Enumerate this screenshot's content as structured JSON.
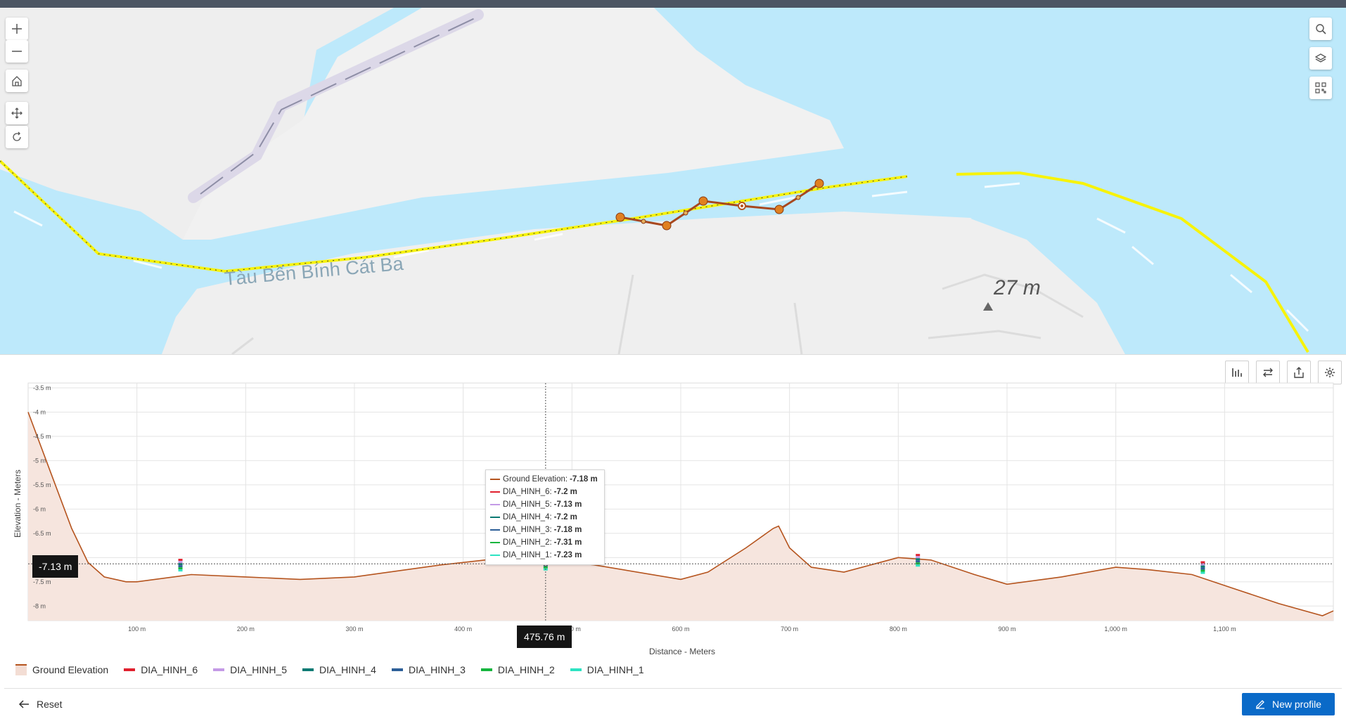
{
  "map": {
    "place_label": "Tàu Bến Bính Cát Ba",
    "elevation_label": "27 m",
    "left_tools": [
      {
        "name": "zoom-in-button",
        "icon": "plus-icon"
      },
      {
        "name": "zoom-out-button",
        "icon": "minus-icon"
      },
      {
        "name": "home-button",
        "icon": "home-icon"
      },
      {
        "name": "pan-button",
        "icon": "move-icon"
      },
      {
        "name": "rotate-button",
        "icon": "rotate-icon"
      }
    ],
    "right_tools": [
      {
        "name": "search-button",
        "icon": "search-icon"
      },
      {
        "name": "layers-button",
        "icon": "layers-icon"
      },
      {
        "name": "qr-button",
        "icon": "qr-code-icon"
      }
    ]
  },
  "chart_data": {
    "type": "line",
    "ylabel": "Elevation - Meters",
    "xlabel": "Distance - Meters",
    "ylim": [
      -8.3,
      -3.4
    ],
    "xlim": [
      0,
      1200
    ],
    "yticks": [
      -3.5,
      -4,
      -4.5,
      -5,
      -5.5,
      -6,
      -6.5,
      -7,
      -7.5,
      -8
    ],
    "ytick_labels": [
      "-3.5 m",
      "-4 m",
      "-4.5 m",
      "-5 m",
      "-5.5 m",
      "-6 m",
      "-6.5 m",
      "-7 m",
      "-7.5 m",
      "-8 m"
    ],
    "xticks": [
      100,
      200,
      300,
      400,
      500,
      600,
      700,
      800,
      900,
      1000,
      1100
    ],
    "xtick_labels": [
      "100 m",
      "200 m",
      "300 m",
      "400 m",
      "500 m",
      "600 m",
      "700 m",
      "800 m",
      "900 m",
      "1,000 m",
      "1,100 m"
    ],
    "grid": true,
    "series": [
      {
        "name": "Ground Elevation",
        "color": "#b5541e",
        "x": [
          0,
          20,
          40,
          55,
          70,
          90,
          100,
          150,
          200,
          250,
          300,
          380,
          420,
          475,
          520,
          600,
          625,
          660,
          685,
          690,
          700,
          720,
          750,
          800,
          830,
          870,
          900,
          950,
          1000,
          1030,
          1070,
          1110,
          1150,
          1190,
          1200
        ],
        "y": [
          -4.0,
          -5.2,
          -6.4,
          -7.1,
          -7.4,
          -7.5,
          -7.5,
          -7.35,
          -7.4,
          -7.45,
          -7.4,
          -7.15,
          -7.05,
          -7.05,
          -7.15,
          -7.45,
          -7.3,
          -6.8,
          -6.4,
          -6.35,
          -6.8,
          -7.2,
          -7.3,
          -7.0,
          -7.05,
          -7.35,
          -7.55,
          -7.4,
          -7.2,
          -7.25,
          -7.35,
          -7.65,
          -7.95,
          -8.2,
          -8.1
        ]
      }
    ],
    "markers": [
      {
        "x": 140,
        "y": -7.2
      },
      {
        "x": 475.76,
        "y": -7.18
      },
      {
        "x": 818,
        "y": -7.1
      },
      {
        "x": 1080,
        "y": -7.25
      }
    ],
    "crosshair": {
      "x": 475.76,
      "y": -7.13
    },
    "crosshair_x_label": "475.76 m",
    "crosshair_y_label": "-7.13 m",
    "tooltip": [
      {
        "label": "Ground Elevation:",
        "value": "-7.18 m",
        "color": "#b5541e"
      },
      {
        "label": "DIA_HINH_6:",
        "value": "-7.2 m",
        "color": "#e0202e"
      },
      {
        "label": "DIA_HINH_5:",
        "value": "-7.13 m",
        "color": "#c49ae6"
      },
      {
        "label": "DIA_HINH_4:",
        "value": "-7.2 m",
        "color": "#0b7a73"
      },
      {
        "label": "DIA_HINH_3:",
        "value": "-7.18 m",
        "color": "#2d5f98"
      },
      {
        "label": "DIA_HINH_2:",
        "value": "-7.31 m",
        "color": "#15b53e"
      },
      {
        "label": "DIA_HINH_1:",
        "value": "-7.23 m",
        "color": "#2de3c2"
      }
    ],
    "legend": [
      {
        "label": "Ground Elevation",
        "color": "#f3ddd4",
        "type": "area"
      },
      {
        "label": "DIA_HINH_6",
        "color": "#e0202e"
      },
      {
        "label": "DIA_HINH_5",
        "color": "#c49ae6"
      },
      {
        "label": "DIA_HINH_4",
        "color": "#0b7a73"
      },
      {
        "label": "DIA_HINH_3",
        "color": "#2d5f98"
      },
      {
        "label": "DIA_HINH_2",
        "color": "#15b53e"
      },
      {
        "label": "DIA_HINH_1",
        "color": "#2de3c2"
      }
    ],
    "legend_placement": "bottom-left"
  },
  "footer": {
    "reset_label": "Reset",
    "new_profile_label": "New profile"
  },
  "colors": {
    "accent": "#0a6ac8",
    "water": "#bde9fb",
    "land": "#efefef",
    "profile_line": "#b5541e"
  }
}
